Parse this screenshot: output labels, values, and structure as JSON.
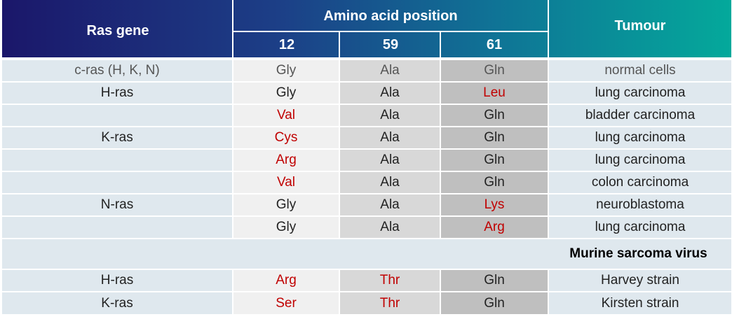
{
  "header": {
    "gene": "Ras gene",
    "position": "Amino acid position",
    "pos12": "12",
    "pos59": "59",
    "pos61": "61",
    "tumour": "Tumour"
  },
  "rows": [
    {
      "gene": "c-ras (H, K, N)",
      "p12": "Gly",
      "p59": "Ala",
      "p61": "Gln",
      "tumour": "normal cells"
    },
    {
      "gene": "H-ras",
      "p12": "Gly",
      "p59": "Ala",
      "p61": "Leu",
      "tumour": "lung carcinoma"
    },
    {
      "gene": "",
      "p12": "Val",
      "p59": "Ala",
      "p61": "Gln",
      "tumour": "bladder carcinoma"
    },
    {
      "gene": "K-ras",
      "p12": "Cys",
      "p59": "Ala",
      "p61": "Gln",
      "tumour": "lung carcinoma"
    },
    {
      "gene": "",
      "p12": "Arg",
      "p59": "Ala",
      "p61": "Gln",
      "tumour": "lung carcinoma"
    },
    {
      "gene": "",
      "p12": "Val",
      "p59": "Ala",
      "p61": "Gln",
      "tumour": "colon carcinoma"
    },
    {
      "gene": "N-ras",
      "p12": "Gly",
      "p59": "Ala",
      "p61": "Lys",
      "tumour": "neuroblastoma"
    },
    {
      "gene": "",
      "p12": "Gly",
      "p59": "Ala",
      "p61": "Arg",
      "tumour": "lung carcinoma"
    }
  ],
  "section_label": "Murine sarcoma virus",
  "virus_rows": [
    {
      "gene": "H-ras",
      "p12": "Arg",
      "p59": "Thr",
      "p61": "Gln",
      "tumour": "Harvey strain"
    },
    {
      "gene": "K-ras",
      "p12": "Ser",
      "p59": "Thr",
      "p61": "Gln",
      "tumour": "Kirsten strain"
    }
  ],
  "colors": {
    "mutation": "#c00000",
    "normal_text": "#555555",
    "header_start": "#1b176a",
    "header_end": "#04a99b"
  }
}
